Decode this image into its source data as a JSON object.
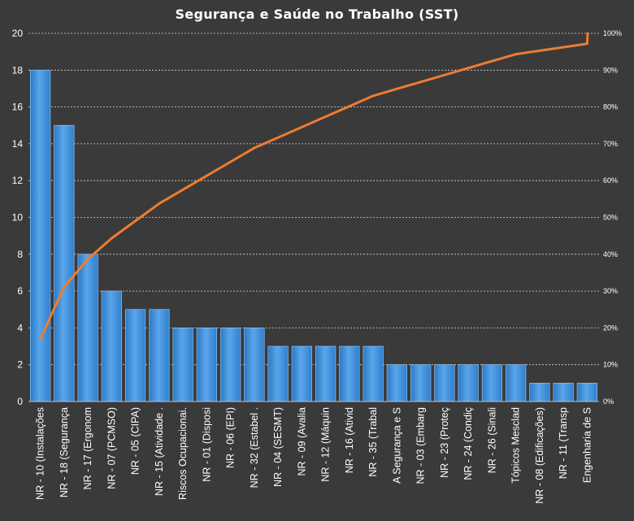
{
  "chart_data": {
    "type": "bar",
    "title": "Segurança e Saúde no Trabalho (SST)",
    "categories": [
      "NR - 10 (Instalações",
      "NR - 18 (Segurança",
      "NR - 17 (Ergonom",
      "NR - 07 (PCMSO)",
      "NR - 05 (CIPA)",
      "NR - 15 (Atividade .",
      "Riscos Ocupacionai.",
      "NR - 01 (Disposi",
      "NR - 06 (EPI)",
      "NR - 32 (Estabel .",
      "NR - 04 (SESMT)",
      "NR - 09 (Avalia",
      "NR - 12 (Máquin",
      "NR - 16 (Ativid",
      "NR - 35 (Trabal",
      "A Segurança e S",
      "NR - 03 (Embarg",
      "NR - 23 (Proteç",
      "NR - 24 (Condiç",
      "NR - 26 (Sinali",
      "Tópicos Mesclad",
      "NR - 08 (Edificações)",
      "NR - 11 (Transp",
      "Engenharia de S"
    ],
    "series": [
      {
        "type": "bar",
        "values": [
          18,
          15,
          8,
          6,
          5,
          5,
          4,
          4,
          4,
          4,
          3,
          3,
          3,
          3,
          3,
          2,
          2,
          2,
          2,
          2,
          2,
          1,
          1,
          1
        ]
      },
      {
        "type": "line",
        "axis": "secondary",
        "values": [
          0.1698,
          0.3113,
          0.3868,
          0.4434,
          0.4906,
          0.5377,
          0.5755,
          0.6132,
          0.6509,
          0.6887,
          0.717,
          0.7453,
          0.7736,
          0.8019,
          0.8302,
          0.8491,
          0.8679,
          0.8868,
          0.9057,
          0.9245,
          0.9434,
          0.9528,
          0.9623,
          0.9717
        ]
      }
    ],
    "ylim": [
      0,
      20
    ],
    "yticks": [
      0,
      2,
      4,
      6,
      8,
      10,
      12,
      14,
      16,
      18,
      20
    ],
    "y2lim": [
      0,
      1
    ],
    "y2ticks": [
      "0%",
      "10%",
      "20%",
      "30%",
      "40%",
      "50%",
      "60%",
      "70%",
      "80%",
      "90%",
      "100%"
    ],
    "grid": true,
    "legend": "none",
    "colors": {
      "background": "#3a3a3a",
      "bar": "#3f8fd8",
      "bar_edge": "#8cc3f2",
      "line": "#ec7d31",
      "text": "#ffffff"
    }
  }
}
